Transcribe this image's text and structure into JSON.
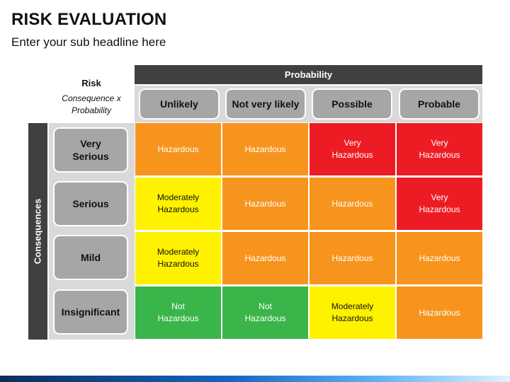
{
  "title": "RISK EVALUATION",
  "subtitle": "Enter your sub headline here",
  "corner": {
    "label": "Risk",
    "sub": "Consequence x\nProbability"
  },
  "probability_label": "Probability",
  "consequences_label": "Consequences",
  "columns": [
    "Unlikely",
    "Not very likely",
    "Possible",
    "Probable"
  ],
  "rows": [
    {
      "label": "Very\nSerious",
      "cells": [
        {
          "text": "Hazardous",
          "level": "orange"
        },
        {
          "text": "Hazardous",
          "level": "orange"
        },
        {
          "text": "Very\nHazardous",
          "level": "red"
        },
        {
          "text": "Very\nHazardous",
          "level": "red"
        }
      ]
    },
    {
      "label": "Serious",
      "cells": [
        {
          "text": "Moderately\nHazardous",
          "level": "yellow"
        },
        {
          "text": "Hazardous",
          "level": "orange"
        },
        {
          "text": "Hazardous",
          "level": "orange"
        },
        {
          "text": "Very\nHazardous",
          "level": "red"
        }
      ]
    },
    {
      "label": "Mild",
      "cells": [
        {
          "text": "Moderately\nHazardous",
          "level": "yellow"
        },
        {
          "text": "Hazardous",
          "level": "orange"
        },
        {
          "text": "Hazardous",
          "level": "orange"
        },
        {
          "text": "Hazardous",
          "level": "orange"
        }
      ]
    },
    {
      "label": "Insignificant",
      "cells": [
        {
          "text": "Not\nHazardous",
          "level": "green"
        },
        {
          "text": "Not\nHazardous",
          "level": "green"
        },
        {
          "text": "Moderately\nHazardous",
          "level": "yellow"
        },
        {
          "text": "Hazardous",
          "level": "orange"
        }
      ]
    }
  ],
  "colors": {
    "orange": "#f7941d",
    "red": "#ed1c24",
    "yellow": "#fff200",
    "green": "#39b54a",
    "header_dark": "#404040",
    "header_grey": "#a6a6a6"
  }
}
